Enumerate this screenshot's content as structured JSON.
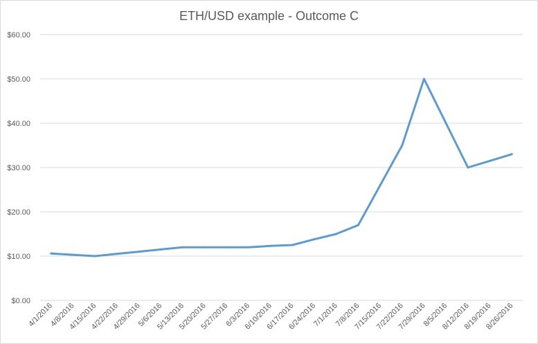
{
  "chart_data": {
    "type": "line",
    "title": "ETH/USD example - Outcome C",
    "xlabel": "",
    "ylabel": "",
    "ylim": [
      0,
      60
    ],
    "y_ticks": [
      "$0.00",
      "$10.00",
      "$20.00",
      "$30.00",
      "$40.00",
      "$50.00",
      "$60.00"
    ],
    "y_tick_values": [
      0,
      10,
      20,
      30,
      40,
      50,
      60
    ],
    "categories": [
      "4/1/2016",
      "4/8/2016",
      "4/15/2016",
      "4/22/2016",
      "4/29/2016",
      "5/6/2016",
      "5/13/2016",
      "5/20/2016",
      "5/27/2016",
      "6/3/2016",
      "6/10/2016",
      "6/17/2016",
      "6/24/2016",
      "7/1/2016",
      "7/8/2016",
      "7/15/2016",
      "7/22/2016",
      "7/29/2016",
      "8/5/2016",
      "8/12/2016",
      "8/19/2016",
      "8/26/2016"
    ],
    "series": [
      {
        "color": "#5b9bd5",
        "values": [
          10.6,
          10.3,
          10.0,
          10.5,
          11.0,
          11.5,
          12.0,
          12.0,
          12.0,
          12.0,
          12.3,
          12.5,
          13.8,
          15.0,
          17.0,
          26.0,
          35.0,
          50.0,
          40.0,
          30.0,
          31.5,
          33.0
        ]
      }
    ],
    "grid": true,
    "legend": "none"
  }
}
